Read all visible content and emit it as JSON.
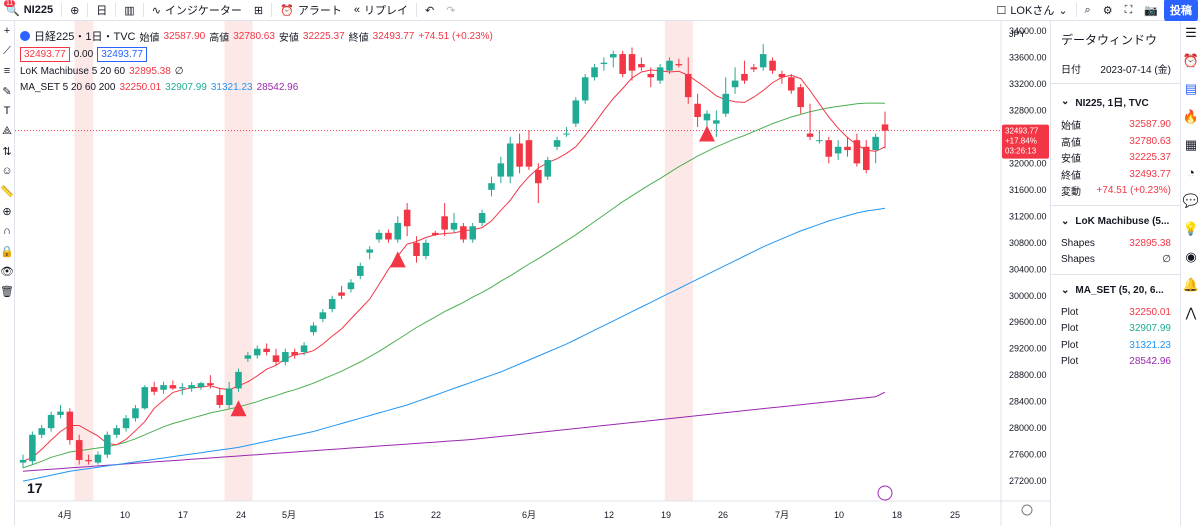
{
  "toolbar": {
    "symbol": "NI225",
    "interval": "日",
    "indicators": "インジケーター",
    "alert": "アラート",
    "replay": "リプレイ",
    "user": "LOKさん",
    "post": "投稿",
    "badge": "11"
  },
  "legend": {
    "title": "日経225・1日・TVC",
    "open_label": "始値",
    "open": "32587.90",
    "high_label": "高値",
    "high": "32780.63",
    "low_label": "安値",
    "low": "32225.37",
    "close_label": "終値",
    "close": "32493.77",
    "change": "+74.51 (+0.23%)",
    "bid": "32493.77",
    "spread": "0.00",
    "ask": "32493.77",
    "ind1_name": "LoK Machibuse 5 20 60",
    "ind1_value": "32895.38",
    "ind2_name": "MA_SET 5 20 60 200",
    "ma5": "32250.01",
    "ma20": "32907.99",
    "ma60": "31321.23",
    "ma200": "28542.96"
  },
  "price_axis": {
    "currency": "JPY",
    "ticks": [
      "34000.00",
      "33600.00",
      "33200.00",
      "32800.00",
      "32400.00",
      "32000.00",
      "31600.00",
      "31200.00",
      "30800.00",
      "30400.00",
      "30000.00",
      "29600.00",
      "29200.00",
      "28800.00",
      "28400.00",
      "28000.00",
      "27600.00",
      "27200.00"
    ],
    "last_price": "32493.77",
    "last_change": "+17.84%",
    "countdown": "03:26:13"
  },
  "time_axis": {
    "labels": [
      "4月",
      "10",
      "17",
      "24",
      "5月",
      "15",
      "22",
      "6月",
      "12",
      "19",
      "26",
      "7月",
      "10",
      "18",
      "25"
    ]
  },
  "chart_data": {
    "type": "candlestick",
    "y_axis": {
      "min": 26900,
      "max": 34150
    },
    "candles": [
      {
        "o": 27480,
        "h": 27600,
        "l": 27400,
        "c": 27520
      },
      {
        "o": 27500,
        "h": 27950,
        "l": 27450,
        "c": 27900
      },
      {
        "o": 27900,
        "h": 28050,
        "l": 27850,
        "c": 28000
      },
      {
        "o": 28000,
        "h": 28250,
        "l": 27950,
        "c": 28200
      },
      {
        "o": 28200,
        "h": 28350,
        "l": 28150,
        "c": 28250
      },
      {
        "o": 28250,
        "h": 28300,
        "l": 27750,
        "c": 27820
      },
      {
        "o": 27820,
        "h": 27900,
        "l": 27450,
        "c": 27520
      },
      {
        "o": 27520,
        "h": 27600,
        "l": 27450,
        "c": 27500
      },
      {
        "o": 27480,
        "h": 27650,
        "l": 27450,
        "c": 27600
      },
      {
        "o": 27600,
        "h": 27950,
        "l": 27550,
        "c": 27900
      },
      {
        "o": 27900,
        "h": 28050,
        "l": 27850,
        "c": 28000
      },
      {
        "o": 28000,
        "h": 28200,
        "l": 27950,
        "c": 28150
      },
      {
        "o": 28150,
        "h": 28350,
        "l": 28100,
        "c": 28300
      },
      {
        "o": 28300,
        "h": 28650,
        "l": 28280,
        "c": 28620
      },
      {
        "o": 28620,
        "h": 28700,
        "l": 28500,
        "c": 28550
      },
      {
        "o": 28580,
        "h": 28700,
        "l": 28520,
        "c": 28650
      },
      {
        "o": 28650,
        "h": 28720,
        "l": 28580,
        "c": 28600
      },
      {
        "o": 28600,
        "h": 28680,
        "l": 28500,
        "c": 28620
      },
      {
        "o": 28600,
        "h": 28700,
        "l": 28550,
        "c": 28650
      },
      {
        "o": 28620,
        "h": 28700,
        "l": 28580,
        "c": 28680
      },
      {
        "o": 28680,
        "h": 28800,
        "l": 28600,
        "c": 28650
      },
      {
        "o": 28500,
        "h": 28600,
        "l": 28300,
        "c": 28350
      },
      {
        "o": 28350,
        "h": 28700,
        "l": 28300,
        "c": 28600
      },
      {
        "o": 28600,
        "h": 28900,
        "l": 28550,
        "c": 28850
      },
      {
        "o": 29050,
        "h": 29150,
        "l": 29000,
        "c": 29100
      },
      {
        "o": 29100,
        "h": 29250,
        "l": 29050,
        "c": 29200
      },
      {
        "o": 29200,
        "h": 29280,
        "l": 29100,
        "c": 29150
      },
      {
        "o": 29100,
        "h": 29200,
        "l": 28950,
        "c": 29000
      },
      {
        "o": 29000,
        "h": 29200,
        "l": 28950,
        "c": 29150
      },
      {
        "o": 29150,
        "h": 29200,
        "l": 29050,
        "c": 29100
      },
      {
        "o": 29150,
        "h": 29300,
        "l": 29100,
        "c": 29250
      },
      {
        "o": 29450,
        "h": 29600,
        "l": 29400,
        "c": 29550
      },
      {
        "o": 29650,
        "h": 29800,
        "l": 29600,
        "c": 29750
      },
      {
        "o": 29800,
        "h": 30000,
        "l": 29750,
        "c": 29950
      },
      {
        "o": 30050,
        "h": 30150,
        "l": 29950,
        "c": 30000
      },
      {
        "o": 30100,
        "h": 30250,
        "l": 30050,
        "c": 30200
      },
      {
        "o": 30300,
        "h": 30500,
        "l": 30250,
        "c": 30450
      },
      {
        "o": 30650,
        "h": 30750,
        "l": 30550,
        "c": 30700
      },
      {
        "o": 30850,
        "h": 31000,
        "l": 30800,
        "c": 30950
      },
      {
        "o": 30950,
        "h": 31000,
        "l": 30800,
        "c": 30850
      },
      {
        "o": 30850,
        "h": 31200,
        "l": 30800,
        "c": 31100
      },
      {
        "o": 31300,
        "h": 31400,
        "l": 30900,
        "c": 31050
      },
      {
        "o": 30800,
        "h": 30900,
        "l": 30500,
        "c": 30600
      },
      {
        "o": 30600,
        "h": 30850,
        "l": 30550,
        "c": 30800
      },
      {
        "o": 30950,
        "h": 30980,
        "l": 30900,
        "c": 30920
      },
      {
        "o": 31200,
        "h": 31400,
        "l": 30900,
        "c": 31000
      },
      {
        "o": 31000,
        "h": 31250,
        "l": 30950,
        "c": 31100
      },
      {
        "o": 31050,
        "h": 31100,
        "l": 30800,
        "c": 30850
      },
      {
        "o": 30850,
        "h": 31100,
        "l": 30800,
        "c": 31050
      },
      {
        "o": 31100,
        "h": 31300,
        "l": 31050,
        "c": 31250
      },
      {
        "o": 31600,
        "h": 31800,
        "l": 31500,
        "c": 31700
      },
      {
        "o": 31800,
        "h": 32100,
        "l": 31700,
        "c": 32000
      },
      {
        "o": 31800,
        "h": 32400,
        "l": 31700,
        "c": 32300
      },
      {
        "o": 32300,
        "h": 32450,
        "l": 31850,
        "c": 31950
      },
      {
        "o": 32350,
        "h": 32500,
        "l": 31900,
        "c": 31950
      },
      {
        "o": 31900,
        "h": 32000,
        "l": 31400,
        "c": 31700
      },
      {
        "o": 31800,
        "h": 32100,
        "l": 31750,
        "c": 32050
      },
      {
        "o": 32250,
        "h": 32400,
        "l": 32200,
        "c": 32350
      },
      {
        "o": 32450,
        "h": 32550,
        "l": 32400,
        "c": 32450
      },
      {
        "o": 32600,
        "h": 33000,
        "l": 32550,
        "c": 32950
      },
      {
        "o": 32950,
        "h": 33350,
        "l": 32900,
        "c": 33300
      },
      {
        "o": 33300,
        "h": 33500,
        "l": 33250,
        "c": 33450
      },
      {
        "o": 33500,
        "h": 33600,
        "l": 33400,
        "c": 33520
      },
      {
        "o": 33600,
        "h": 33700,
        "l": 33450,
        "c": 33650
      },
      {
        "o": 33650,
        "h": 33700,
        "l": 33300,
        "c": 33350
      },
      {
        "o": 33650,
        "h": 33750,
        "l": 33250,
        "c": 33400
      },
      {
        "o": 33500,
        "h": 33600,
        "l": 33400,
        "c": 33450
      },
      {
        "o": 33350,
        "h": 33450,
        "l": 33150,
        "c": 33300
      },
      {
        "o": 33250,
        "h": 33500,
        "l": 33200,
        "c": 33450
      },
      {
        "o": 33400,
        "h": 33600,
        "l": 33350,
        "c": 33550
      },
      {
        "o": 33500,
        "h": 33580,
        "l": 33450,
        "c": 33480
      },
      {
        "o": 33350,
        "h": 33600,
        "l": 32900,
        "c": 33000
      },
      {
        "o": 32900,
        "h": 33050,
        "l": 32550,
        "c": 32700
      },
      {
        "o": 32650,
        "h": 32800,
        "l": 32550,
        "c": 32750
      },
      {
        "o": 32600,
        "h": 32800,
        "l": 32400,
        "c": 32650
      },
      {
        "o": 32750,
        "h": 33300,
        "l": 32700,
        "c": 33050
      },
      {
        "o": 33150,
        "h": 33450,
        "l": 33050,
        "c": 33250
      },
      {
        "o": 33350,
        "h": 33550,
        "l": 33200,
        "c": 33250
      },
      {
        "o": 33450,
        "h": 33500,
        "l": 33380,
        "c": 33420
      },
      {
        "o": 33450,
        "h": 33800,
        "l": 33400,
        "c": 33650
      },
      {
        "o": 33550,
        "h": 33600,
        "l": 33350,
        "c": 33400
      },
      {
        "o": 33350,
        "h": 33400,
        "l": 33200,
        "c": 33300
      },
      {
        "o": 33300,
        "h": 33350,
        "l": 33050,
        "c": 33100
      },
      {
        "o": 33150,
        "h": 33200,
        "l": 32750,
        "c": 32850
      },
      {
        "o": 32450,
        "h": 32900,
        "l": 32350,
        "c": 32400
      },
      {
        "o": 32350,
        "h": 32500,
        "l": 32300,
        "c": 32350
      },
      {
        "o": 32350,
        "h": 32400,
        "l": 32000,
        "c": 32100
      },
      {
        "o": 32150,
        "h": 32350,
        "l": 32050,
        "c": 32250
      },
      {
        "o": 32250,
        "h": 32400,
        "l": 32100,
        "c": 32200
      },
      {
        "o": 32350,
        "h": 32450,
        "l": 31950,
        "c": 32000
      },
      {
        "o": 32250,
        "h": 32350,
        "l": 31850,
        "c": 31900
      },
      {
        "o": 32200,
        "h": 32450,
        "l": 32000,
        "c": 32400
      },
      {
        "o": 32587.9,
        "h": 32780.63,
        "l": 32225.37,
        "c": 32493.77
      }
    ],
    "ma5": [
      27500,
      27560,
      27680,
      27820,
      27950,
      28040,
      28040,
      27960,
      27880,
      27770,
      27750,
      27830,
      27960,
      28100,
      28300,
      28420,
      28540,
      28580,
      28610,
      28620,
      28640,
      28600,
      28580,
      28640,
      28700,
      28790,
      28890,
      28950,
      29050,
      29110,
      29130,
      29170,
      29270,
      29390,
      29500,
      29650,
      29800,
      29950,
      30170,
      30400,
      30600,
      30780,
      30820,
      30880,
      30920,
      30940,
      30950,
      30980,
      31000,
      31030,
      31130,
      31290,
      31440,
      31640,
      31800,
      31930,
      32010,
      32070,
      32150,
      32250,
      32420,
      32600,
      32800,
      32980,
      33130,
      33290,
      33380,
      33410,
      33400,
      33380,
      33390,
      33330,
      33230,
      33130,
      33020,
      32960,
      32930,
      32920,
      33000,
      33100,
      33220,
      33300,
      33330,
      33280,
      33100,
      32900,
      32700,
      32530,
      32390,
      32280,
      32200,
      32180,
      32250
    ],
    "ma20": [
      27400,
      27450,
      27500,
      27560,
      27600,
      27640,
      27660,
      27680,
      27700,
      27720,
      27750,
      27790,
      27840,
      27900,
      27960,
      28020,
      28070,
      28110,
      28150,
      28190,
      28230,
      28260,
      28290,
      28320,
      28360,
      28400,
      28450,
      28490,
      28540,
      28580,
      28630,
      28680,
      28740,
      28800,
      28860,
      28930,
      29000,
      29080,
      29160,
      29250,
      29340,
      29430,
      29520,
      29600,
      29680,
      29760,
      29830,
      29900,
      29980,
      30050,
      30130,
      30220,
      30300,
      30390,
      30480,
      30560,
      30650,
      30740,
      30830,
      30920,
      31020,
      31120,
      31220,
      31320,
      31420,
      31510,
      31600,
      31690,
      31770,
      31860,
      31950,
      32030,
      32110,
      32180,
      32250,
      32310,
      32370,
      32420,
      32480,
      32540,
      32600,
      32650,
      32700,
      32740,
      32780,
      32810,
      32840,
      32860,
      32880,
      32900,
      32910,
      32910,
      32907.99
    ],
    "ma60": [
      27200,
      27230,
      27260,
      27290,
      27320,
      27350,
      27370,
      27390,
      27410,
      27430,
      27450,
      27470,
      27490,
      27510,
      27530,
      27550,
      27570,
      27590,
      27610,
      27630,
      27650,
      27670,
      27690,
      27710,
      27740,
      27770,
      27800,
      27830,
      27860,
      27890,
      27920,
      27950,
      27990,
      28030,
      28070,
      28110,
      28150,
      28190,
      28230,
      28270,
      28310,
      28350,
      28400,
      28450,
      28500,
      28550,
      28600,
      28650,
      28700,
      28750,
      28800,
      28850,
      28910,
      28970,
      29030,
      29090,
      29150,
      29210,
      29270,
      29340,
      29410,
      29480,
      29550,
      29620,
      29690,
      29760,
      29830,
      29900,
      29970,
      30040,
      30110,
      30180,
      30250,
      30320,
      30390,
      30460,
      30530,
      30600,
      30670,
      30740,
      30800,
      30860,
      30920,
      30980,
      31030,
      31080,
      31130,
      31170,
      31210,
      31250,
      31280,
      31300,
      31321.23
    ],
    "ma200": [
      27350,
      27360,
      27370,
      27380,
      27390,
      27400,
      27410,
      27420,
      27430,
      27440,
      27450,
      27460,
      27470,
      27480,
      27490,
      27500,
      27510,
      27520,
      27530,
      27540,
      27550,
      27560,
      27570,
      27580,
      27590,
      27600,
      27610,
      27620,
      27630,
      27640,
      27650,
      27660,
      27670,
      27680,
      27690,
      27700,
      27710,
      27720,
      27730,
      27740,
      27750,
      27760,
      27770,
      27780,
      27790,
      27800,
      27810,
      27820,
      27830,
      27845,
      27860,
      27875,
      27890,
      27905,
      27920,
      27935,
      27950,
      27965,
      27980,
      27995,
      28010,
      28025,
      28040,
      28055,
      28070,
      28085,
      28100,
      28115,
      28130,
      28145,
      28160,
      28175,
      28190,
      28205,
      28220,
      28235,
      28250,
      28265,
      28280,
      28295,
      28310,
      28325,
      28340,
      28355,
      28370,
      28385,
      28400,
      28415,
      28430,
      28445,
      28460,
      28475,
      28542.96
    ],
    "signals": [
      {
        "index": 23,
        "price": 28300
      },
      {
        "index": 40,
        "price": 30550
      },
      {
        "index": 73,
        "price": 32450
      }
    ],
    "highlight_ranges": [
      [
        6,
        7
      ],
      [
        22,
        24
      ],
      [
        69,
        71
      ]
    ]
  },
  "data_window": {
    "title": "データウィンドウ",
    "date_label": "日付",
    "date": "2023-07-14 (金)",
    "symbol": "NI225, 1日, TVC",
    "rows": [
      {
        "label": "始値",
        "value": "32587.90"
      },
      {
        "label": "高値",
        "value": "32780.63"
      },
      {
        "label": "安値",
        "value": "32225.37"
      },
      {
        "label": "終値",
        "value": "32493.77"
      },
      {
        "label": "変動",
        "value": "+74.51 (+0.23%)"
      }
    ],
    "ind1_title": "LoK Machibuse (5...",
    "ind1_rows": [
      {
        "label": "Shapes",
        "value": "32895.38"
      },
      {
        "label": "Shapes",
        "value": "∅"
      }
    ],
    "ind2_title": "MA_SET (5, 20, 6...",
    "ind2_rows": [
      {
        "label": "Plot",
        "value": "32250.01"
      },
      {
        "label": "Plot",
        "value": "32907.99"
      },
      {
        "label": "Plot",
        "value": "31321.23"
      },
      {
        "label": "Plot",
        "value": "28542.96"
      }
    ]
  },
  "colors": {
    "up": "#22ab94",
    "down": "#f23645",
    "ma5": "#f23645",
    "ma20": "#4caf50",
    "ma60": "#2196f3",
    "ma200": "#9c27b0",
    "highlight": "#fde2e2"
  }
}
